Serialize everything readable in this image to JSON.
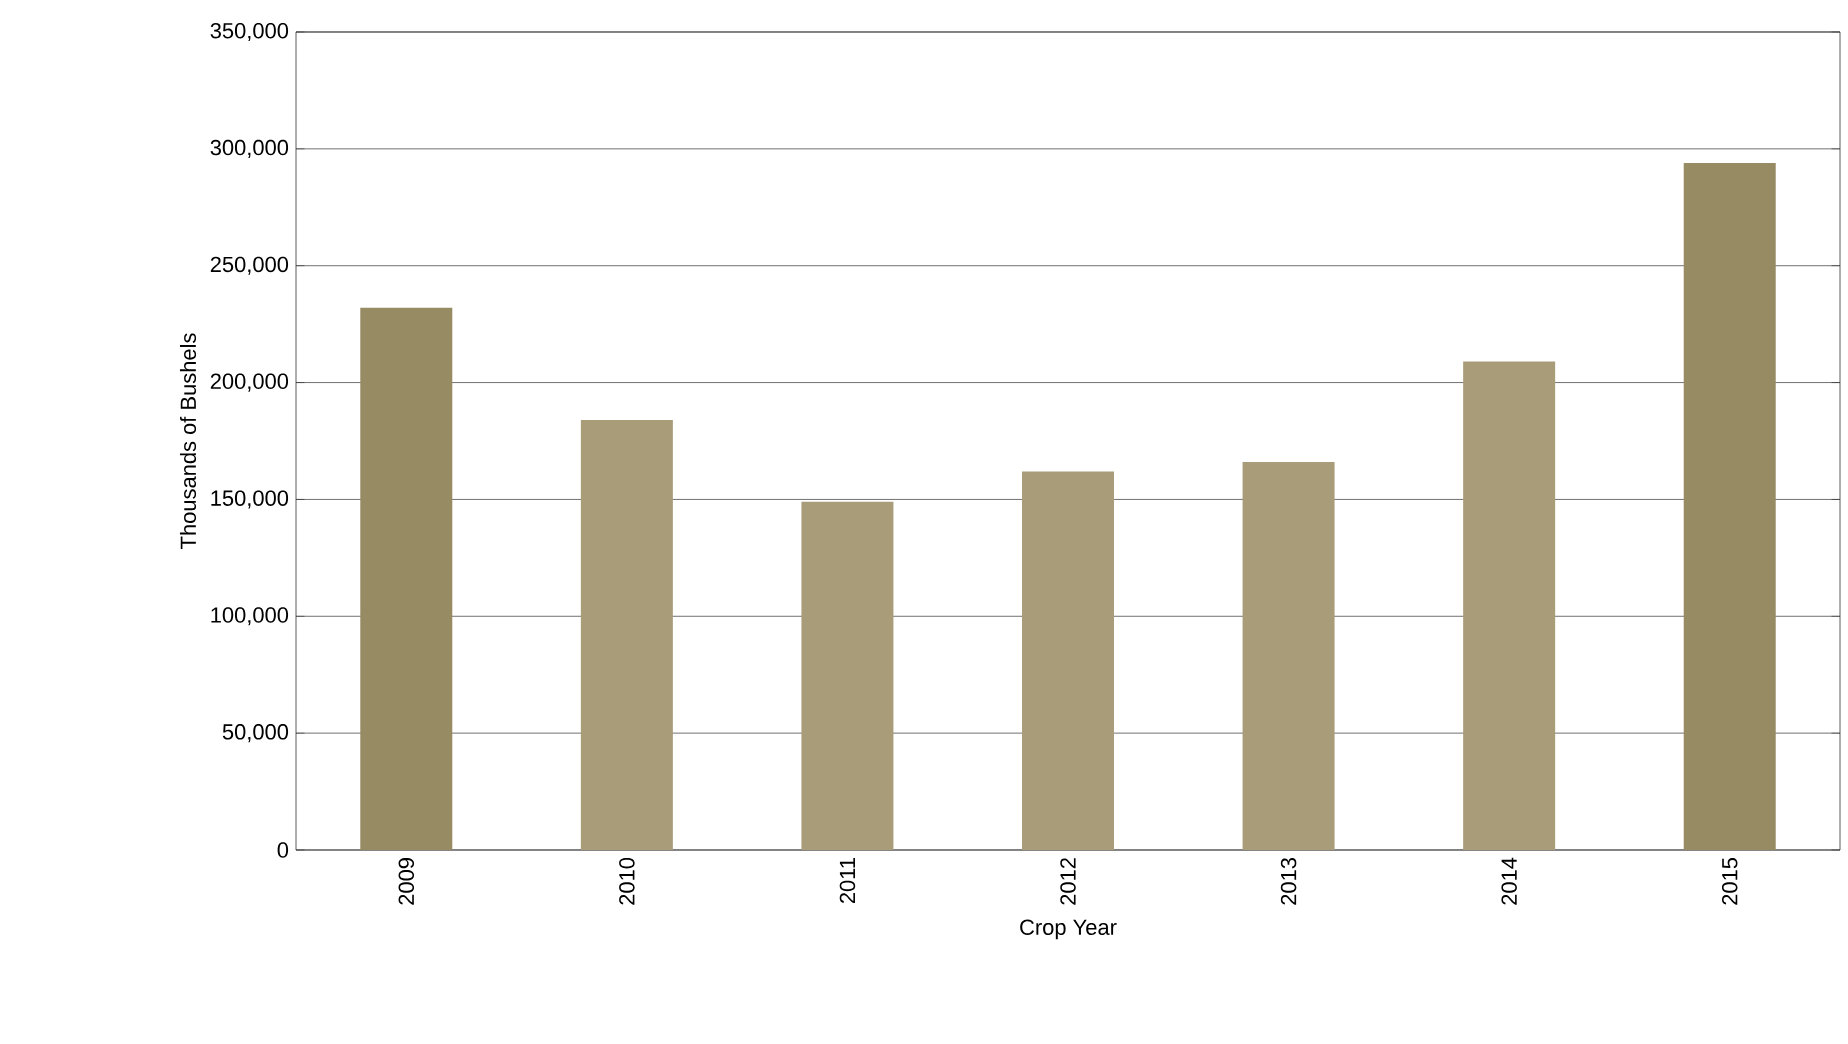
{
  "chart_data": {
    "type": "bar",
    "xlabel": "Crop Year",
    "ylabel": "Thousands of Bushels",
    "categories": [
      "2009",
      "2010",
      "2011",
      "2012",
      "2013",
      "2014",
      "2015"
    ],
    "values": [
      232000,
      184000,
      149000,
      162000,
      166000,
      209000,
      294000
    ],
    "colors": [
      "#978b63",
      "#a89d78",
      "#a89d78",
      "#a89d78",
      "#a89d78",
      "#a89d78",
      "#978b63"
    ],
    "ylim": [
      0,
      350000
    ],
    "yticks": [
      {
        "value": 0,
        "label": "0"
      },
      {
        "value": 50000,
        "label": "50,000"
      },
      {
        "value": 100000,
        "label": "100,000"
      },
      {
        "value": 150000,
        "label": "150,000"
      },
      {
        "value": 200000,
        "label": "200,000"
      },
      {
        "value": 250000,
        "label": "250,000"
      },
      {
        "value": 300000,
        "label": "300,000"
      },
      {
        "value": 350000,
        "label": "350,000"
      }
    ],
    "grid": "y"
  }
}
